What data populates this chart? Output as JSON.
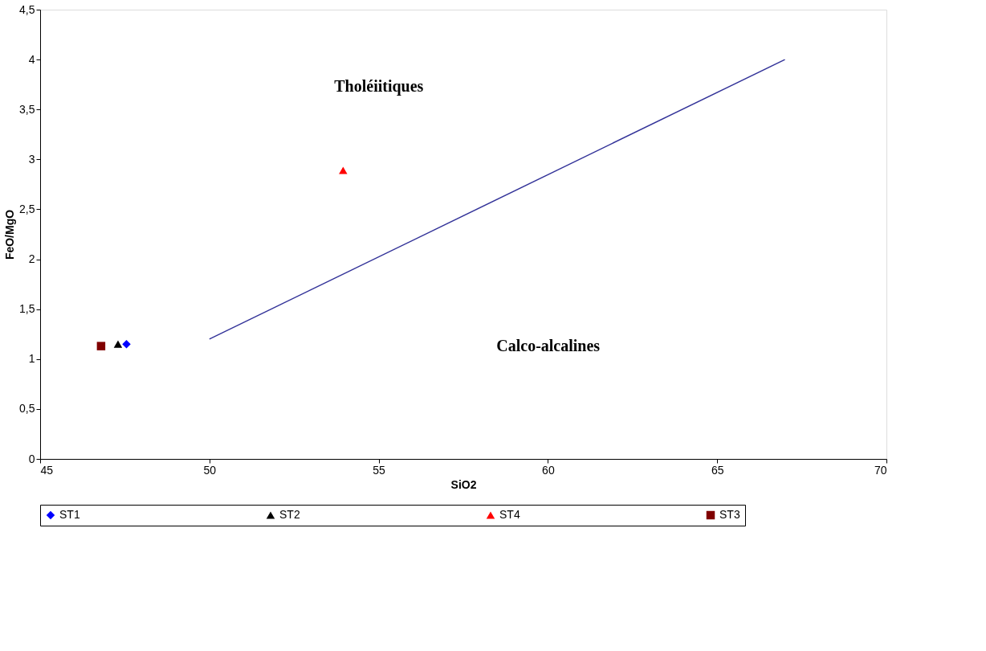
{
  "chart_data": {
    "type": "scatter",
    "xlabel": "SiO2",
    "ylabel": "FeO/MgO",
    "xlim": [
      45,
      70
    ],
    "xticks": [
      45,
      50,
      55,
      60,
      65,
      70
    ],
    "ylim": [
      0,
      4.5
    ],
    "yticks": [
      0,
      {
        "value": 0.5,
        "label": "0,5"
      },
      1,
      {
        "value": 1.5,
        "label": "1,5"
      },
      2,
      {
        "value": 2.5,
        "label": "2,5"
      },
      3,
      {
        "value": 3.5,
        "label": "3,5"
      },
      4,
      {
        "value": 4.5,
        "label": "4,5"
      }
    ],
    "grid": false,
    "legend": "bottom",
    "annotations": [
      "Tholéiitiques",
      "Calco-alcalines"
    ],
    "series": [
      {
        "type": "line",
        "color": "#333399",
        "x": [
          50,
          67
        ],
        "values": [
          1.2,
          4
        ],
        "line_style": "solid",
        "marker": "none"
      },
      {
        "name": "ST1",
        "color": "#0000ff",
        "x": [
          47.55
        ],
        "values": [
          1.15
        ],
        "marker": "diamond"
      },
      {
        "name": "ST2",
        "color": "#000000",
        "x": [
          47.3
        ],
        "values": [
          1.15
        ],
        "marker": "triangle"
      },
      {
        "name": "ST4",
        "color": "#ff0000",
        "x": [
          53.95
        ],
        "values": [
          2.89
        ],
        "marker": "triangle"
      },
      {
        "name": "ST3",
        "color": "#800000",
        "x": [
          46.8
        ],
        "values": [
          1.13
        ],
        "marker": "square"
      }
    ]
  }
}
